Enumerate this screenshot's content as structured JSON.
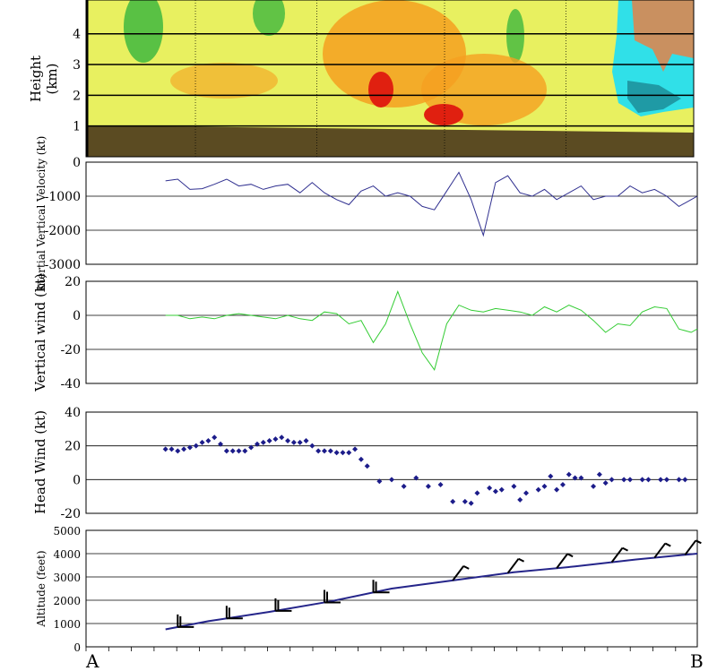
{
  "endpoints": {
    "start": "A",
    "end": "B"
  },
  "chart_data": [
    {
      "id": "radar",
      "type": "heatmap",
      "ylabel": "Height",
      "yunit": "(km)",
      "yticks": [
        "1",
        "2",
        "3",
        "4"
      ],
      "ylim": [
        0,
        5.1
      ],
      "grid": true,
      "colors": {
        "ground": "#5b4b22",
        "base": "#e8f060",
        "green": "#3fb83f",
        "orange": "#f5a020",
        "red": "#e02010",
        "cyan": "#30e0e8",
        "tan": "#c99060"
      }
    },
    {
      "id": "inertial",
      "type": "line",
      "ylabel": "Inertial Vertical Velocity (kt)",
      "yticks": [
        "0",
        "-1000",
        "-2000",
        "-3000"
      ],
      "ylim": [
        -3000,
        0
      ],
      "grid": true,
      "color": "#303090",
      "x": [
        0.13,
        0.15,
        0.17,
        0.19,
        0.21,
        0.23,
        0.25,
        0.27,
        0.29,
        0.31,
        0.33,
        0.35,
        0.37,
        0.39,
        0.41,
        0.43,
        0.45,
        0.47,
        0.49,
        0.51,
        0.53,
        0.55,
        0.57,
        0.59,
        0.61,
        0.63,
        0.65,
        0.67,
        0.69,
        0.71,
        0.73,
        0.75,
        0.77,
        0.79,
        0.81,
        0.83,
        0.85,
        0.87,
        0.89,
        0.91,
        0.93,
        0.95,
        0.97,
        0.99,
        1.0
      ],
      "y": [
        -550,
        -500,
        -800,
        -780,
        -650,
        -500,
        -700,
        -650,
        -800,
        -700,
        -650,
        -900,
        -600,
        -900,
        -1100,
        -1250,
        -850,
        -700,
        -1000,
        -900,
        -1000,
        -1300,
        -1400,
        -850,
        -300,
        -1100,
        -2150,
        -600,
        -400,
        -900,
        -1000,
        -800,
        -1100,
        -900,
        -700,
        -1100,
        -1000,
        -1000,
        -700,
        -900,
        -800,
        -1000,
        -1300,
        -1100,
        -1000
      ]
    },
    {
      "id": "vertical-wind",
      "type": "line",
      "ylabel": "Vertical wind (kt)",
      "yticks": [
        "20",
        "0",
        "-20",
        "-40"
      ],
      "ylim": [
        -40,
        20
      ],
      "grid": true,
      "color": "#33cc33",
      "x": [
        0.13,
        0.15,
        0.17,
        0.19,
        0.21,
        0.23,
        0.25,
        0.27,
        0.29,
        0.31,
        0.33,
        0.35,
        0.37,
        0.39,
        0.41,
        0.43,
        0.45,
        0.47,
        0.49,
        0.51,
        0.53,
        0.55,
        0.57,
        0.59,
        0.61,
        0.63,
        0.65,
        0.67,
        0.69,
        0.71,
        0.73,
        0.75,
        0.77,
        0.79,
        0.81,
        0.83,
        0.85,
        0.87,
        0.89,
        0.91,
        0.93,
        0.95,
        0.97,
        0.99,
        1.0
      ],
      "y": [
        0,
        0,
        -2,
        -1,
        -2,
        0,
        1,
        0,
        -1,
        -2,
        0,
        -2,
        -3,
        2,
        1,
        -5,
        -3,
        -16,
        -5,
        14,
        -5,
        -22,
        -32,
        -5,
        6,
        3,
        2,
        4,
        3,
        2,
        0,
        5,
        2,
        6,
        3,
        -3,
        -10,
        -5,
        -6,
        2,
        5,
        4,
        -8,
        -10,
        -8
      ]
    },
    {
      "id": "head-wind",
      "type": "scatter",
      "ylabel": "Head Wind (kt)",
      "yticks": [
        "40",
        "20",
        "0",
        "-20"
      ],
      "ylim": [
        -20,
        40
      ],
      "grid": true,
      "color": "#1c1c8a",
      "x": [
        0.13,
        0.14,
        0.15,
        0.16,
        0.17,
        0.18,
        0.19,
        0.2,
        0.21,
        0.22,
        0.23,
        0.24,
        0.25,
        0.26,
        0.27,
        0.28,
        0.29,
        0.3,
        0.31,
        0.32,
        0.33,
        0.34,
        0.35,
        0.36,
        0.37,
        0.38,
        0.39,
        0.4,
        0.41,
        0.42,
        0.43,
        0.44,
        0.45,
        0.46,
        0.48,
        0.5,
        0.52,
        0.54,
        0.56,
        0.58,
        0.6,
        0.62,
        0.63,
        0.64,
        0.66,
        0.67,
        0.68,
        0.7,
        0.71,
        0.72,
        0.74,
        0.75,
        0.76,
        0.77,
        0.78,
        0.79,
        0.8,
        0.81,
        0.83,
        0.84,
        0.85,
        0.86,
        0.88,
        0.89,
        0.91,
        0.92,
        0.94,
        0.95,
        0.97,
        0.98
      ],
      "y": [
        18,
        18,
        17,
        18,
        19,
        20,
        22,
        23,
        25,
        21,
        17,
        17,
        17,
        17,
        19,
        21,
        22,
        23,
        24,
        25,
        23,
        22,
        22,
        23,
        20,
        17,
        17,
        17,
        16,
        16,
        16,
        18,
        12,
        8,
        -1,
        0,
        -4,
        1,
        -4,
        -3,
        -13,
        -13,
        -14,
        -8,
        -5,
        -7,
        -6,
        -4,
        -12,
        -8,
        -6,
        -4,
        2,
        -6,
        -3,
        3,
        1,
        1,
        -4,
        3,
        -2,
        0,
        0,
        0,
        0,
        0,
        0,
        0,
        0,
        0
      ]
    },
    {
      "id": "altitude",
      "type": "line",
      "ylabel": "Altitude (feet)",
      "yticks": [
        "5000",
        "4000",
        "3000",
        "2000",
        "1000",
        "0"
      ],
      "ylim": [
        0,
        5000
      ],
      "grid": true,
      "color": "#25258a",
      "x": [
        0.13,
        0.2,
        0.3,
        0.4,
        0.5,
        0.6,
        0.7,
        0.8,
        0.9,
        1.0
      ],
      "y": [
        750,
        1100,
        1500,
        1950,
        2500,
        2850,
        3200,
        3450,
        3750,
        4000
      ],
      "barb_color": "#000000",
      "barbs_x": [
        0.15,
        0.23,
        0.31,
        0.39,
        0.47,
        0.6,
        0.69,
        0.77,
        0.86,
        0.93,
        0.98
      ]
    }
  ]
}
